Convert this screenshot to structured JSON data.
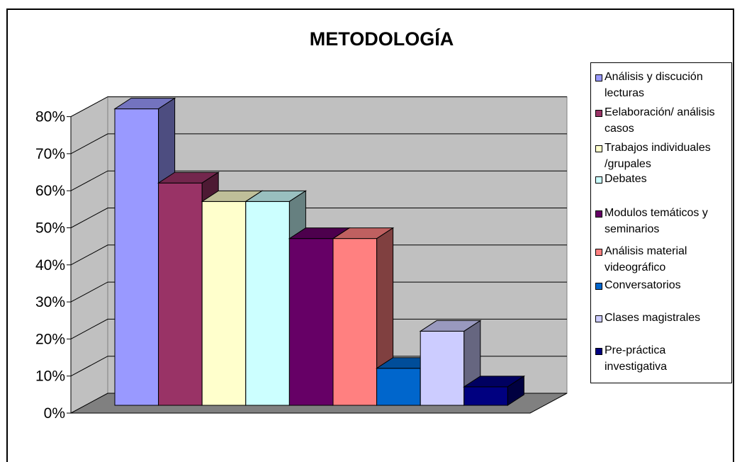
{
  "chart_data": {
    "type": "bar",
    "title": "METODOLOGÍA",
    "yticks": [
      "0%",
      "10%",
      "20%",
      "30%",
      "40%",
      "50%",
      "60%",
      "70%",
      "80%"
    ],
    "ylim": [
      0,
      0.8
    ],
    "grid": true,
    "legend_position": "right",
    "series": [
      {
        "name": "Análisis y discución lecturas",
        "value": 0.8,
        "color": "#9999ff"
      },
      {
        "name": "Eelaboración/ análisis casos",
        "value": 0.6,
        "color": "#993366"
      },
      {
        "name": "Trabajos individuales /grupales",
        "value": 0.55,
        "color": "#ffffcc"
      },
      {
        "name": "Debates",
        "value": 0.55,
        "color": "#ccffff"
      },
      {
        "name": "Modulos temáticos y seminarios",
        "value": 0.45,
        "color": "#660066"
      },
      {
        "name": "Análisis material videográfico",
        "value": 0.45,
        "color": "#ff8080"
      },
      {
        "name": "Conversatorios",
        "value": 0.1,
        "color": "#0066cc"
      },
      {
        "name": "Clases magistrales",
        "value": 0.2,
        "color": "#ccccff"
      },
      {
        "name": "Pre-práctica investigativa",
        "value": 0.05,
        "color": "#000080"
      }
    ]
  }
}
